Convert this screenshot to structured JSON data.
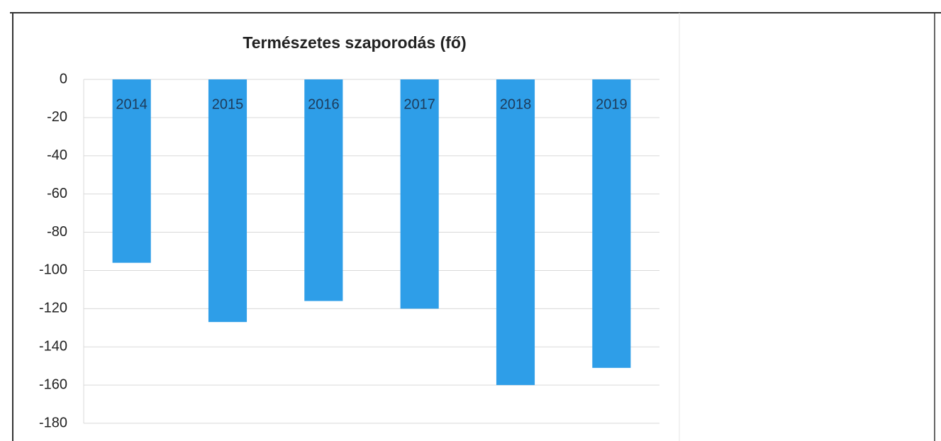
{
  "chart_data": {
    "type": "bar",
    "title": "Természetes szaporodás (fő)",
    "categories": [
      "2014",
      "2015",
      "2016",
      "2017",
      "2018",
      "2019"
    ],
    "values": [
      -96,
      -127,
      -116,
      -120,
      -160,
      -151
    ],
    "color": "#2e9ee8",
    "ylim": [
      -180,
      0
    ],
    "yticks": [
      0,
      -20,
      -40,
      -60,
      -80,
      -100,
      -120,
      -140,
      -160,
      -180
    ],
    "grid": true
  }
}
